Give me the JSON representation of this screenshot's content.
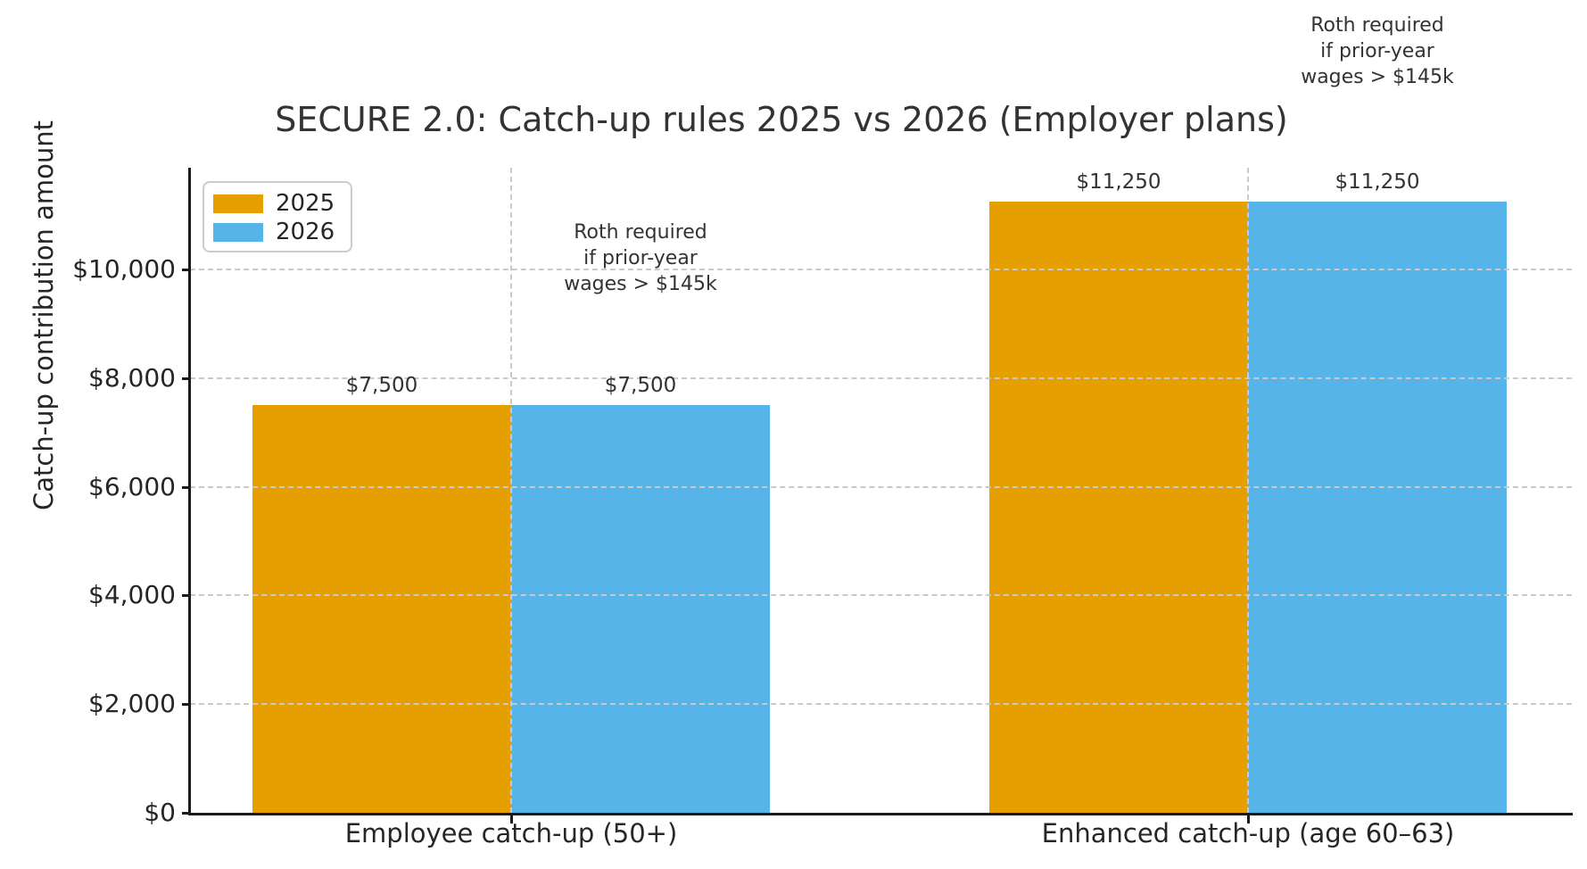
{
  "chart_data": {
    "type": "bar",
    "title": "SECURE 2.0: Catch-up rules 2025 vs 2026 (Employer plans)",
    "xlabel": "",
    "ylabel": "Catch-up contribution amount",
    "categories": [
      "Employee catch-up (50+)",
      "Enhanced catch-up (age 60–63)"
    ],
    "series": [
      {
        "name": "2025",
        "color": "#E69F00",
        "values": [
          7500,
          11250
        ],
        "value_labels": [
          "$7,500",
          "$11,250"
        ]
      },
      {
        "name": "2026",
        "color": "#56B4E9",
        "values": [
          7500,
          11250
        ],
        "value_labels": [
          "$7,500",
          "$11,250"
        ]
      }
    ],
    "yticks": [
      {
        "value": 0,
        "label": "$0"
      },
      {
        "value": 2000,
        "label": "$2,000"
      },
      {
        "value": 4000,
        "label": "$4,000"
      },
      {
        "value": 6000,
        "label": "$6,000"
      },
      {
        "value": 8000,
        "label": "$8,000"
      },
      {
        "value": 10000,
        "label": "$10,000"
      }
    ],
    "ylim": [
      0,
      11870
    ],
    "grid": {
      "horizontal": true,
      "vertical": true,
      "style": "dashed",
      "color": "#c9c9c9"
    },
    "legend": {
      "position": "upper left",
      "entries": [
        "2025",
        "2026"
      ]
    },
    "annotations": [
      {
        "text_lines": [
          "Roth required",
          "if prior-year",
          "wages > $145k"
        ],
        "category_index": 0,
        "series_index": 1
      },
      {
        "text_lines": [
          "Roth required",
          "if prior-year",
          "wages > $145k"
        ],
        "category_index": 1,
        "series_index": 1
      }
    ],
    "colors": {
      "bar_2025": "#E69F00",
      "bar_2026": "#56B4E9",
      "grid": "#c9c9c9",
      "spine": "#1a1a1a",
      "text": "#262626",
      "background": "#ffffff"
    }
  }
}
